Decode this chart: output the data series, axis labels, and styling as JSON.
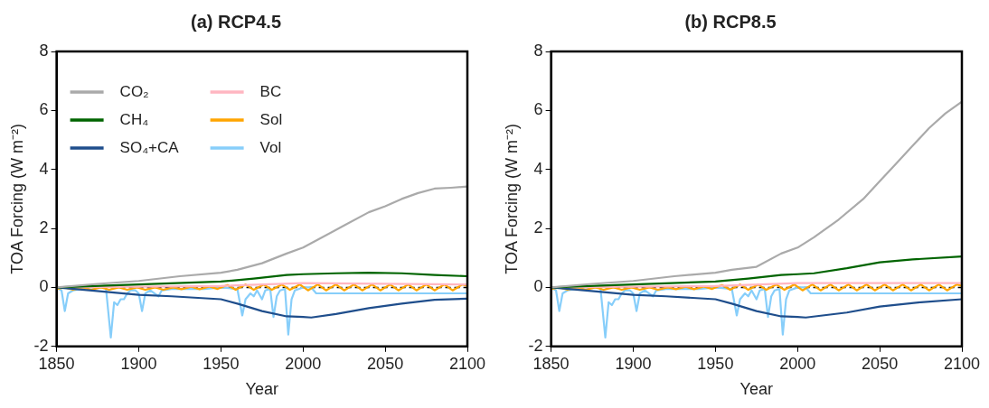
{
  "chart_data": [
    {
      "type": "line",
      "title": "(a) RCP4.5",
      "xlabel": "Year",
      "ylabel": "TOA Forcing (W m⁻²)",
      "xlim": [
        1850,
        2100
      ],
      "xticks": [
        1850,
        1900,
        1950,
        2000,
        2050,
        2100
      ],
      "ylim": [
        -2,
        8
      ],
      "yticks": [
        -2,
        0,
        2,
        4,
        6,
        8
      ],
      "grid": false,
      "legend": "top left",
      "marker": "none",
      "line_style": "solid",
      "ref_lines": [
        {
          "axis": "y",
          "value": 0,
          "color": "#000000",
          "line_style": "dashed"
        }
      ],
      "series": [
        {
          "name": "CO₂",
          "color": "#aaaaaa",
          "x": [
            1850,
            1875,
            1900,
            1925,
            1950,
            1960,
            1975,
            1990,
            2000,
            2010,
            2025,
            2040,
            2050,
            2060,
            2070,
            2080,
            2090,
            2100
          ],
          "values": [
            0,
            0.12,
            0.22,
            0.38,
            0.5,
            0.6,
            0.82,
            1.15,
            1.35,
            1.65,
            2.1,
            2.55,
            2.75,
            3.0,
            3.2,
            3.35,
            3.38,
            3.42
          ]
        },
        {
          "name": "CH₄",
          "color": "#006400",
          "x": [
            1850,
            1900,
            1950,
            1970,
            1990,
            2000,
            2020,
            2040,
            2060,
            2080,
            2100
          ],
          "values": [
            0,
            0.1,
            0.2,
            0.3,
            0.42,
            0.45,
            0.48,
            0.5,
            0.48,
            0.42,
            0.38
          ]
        },
        {
          "name": "SO₄+CA",
          "color": "#1f4e8c",
          "x": [
            1850,
            1870,
            1900,
            1920,
            1950,
            1960,
            1975,
            1990,
            2000,
            2005,
            2020,
            2040,
            2060,
            2080,
            2100
          ],
          "values": [
            0,
            -0.1,
            -0.25,
            -0.3,
            -0.4,
            -0.55,
            -0.8,
            -0.98,
            -1.0,
            -1.02,
            -0.9,
            -0.7,
            -0.55,
            -0.42,
            -0.38
          ]
        },
        {
          "name": "BC",
          "color": "#ffb6c1",
          "x": [
            1850,
            1950,
            2000,
            2100
          ],
          "values": [
            0,
            0.05,
            0.15,
            0.1
          ]
        },
        {
          "name": "Sol",
          "color": "#ffa500",
          "x": [
            1850,
            1855,
            1860,
            1866,
            1871,
            1877,
            1882,
            1888,
            1893,
            1899,
            1904,
            1910,
            1915,
            1921,
            1926,
            1932,
            1937,
            1943,
            1948,
            1954,
            1959,
            1965,
            1970,
            1976,
            1981,
            1987,
            1992,
            1998,
            2003,
            2009,
            2014,
            2020,
            2025,
            2031,
            2036,
            2042,
            2047,
            2053,
            2058,
            2064,
            2069,
            2075,
            2080,
            2086,
            2091,
            2097,
            2100
          ],
          "values": [
            -0.05,
            0,
            -0.08,
            0,
            -0.08,
            0,
            -0.08,
            0,
            -0.08,
            0,
            -0.08,
            0,
            -0.08,
            0,
            -0.06,
            0.02,
            -0.06,
            0.03,
            -0.05,
            0.08,
            -0.08,
            0.1,
            -0.08,
            0.1,
            -0.08,
            0.1,
            -0.08,
            0.1,
            -0.1,
            0.1,
            -0.1,
            0.1,
            -0.1,
            0.1,
            -0.1,
            0.1,
            -0.1,
            0.1,
            -0.1,
            0.1,
            -0.1,
            0.1,
            -0.1,
            0.1,
            -0.1,
            0.1,
            0.05
          ]
        },
        {
          "name": "Vol",
          "color": "#87cefa",
          "x": [
            1850,
            1853,
            1855,
            1857,
            1860,
            1865,
            1870,
            1880,
            1883,
            1885,
            1887,
            1889,
            1891,
            1893,
            1895,
            1898,
            1900,
            1902,
            1904,
            1907,
            1912,
            1914,
            1920,
            1930,
            1940,
            1950,
            1960,
            1963,
            1965,
            1968,
            1970,
            1972,
            1975,
            1977,
            1980,
            1982,
            1984,
            1986,
            1989,
            1991,
            1993,
            1995,
            2000,
            2005,
            2008,
            2100
          ],
          "values": [
            0,
            -0.1,
            -0.8,
            -0.2,
            -0.1,
            -0.05,
            0,
            0,
            -1.7,
            -0.5,
            -0.6,
            -0.4,
            -0.4,
            -0.2,
            -0.1,
            -0.1,
            -0.2,
            -0.8,
            -0.2,
            -0.1,
            -0.3,
            -0.1,
            -0.05,
            -0.05,
            -0.05,
            0,
            -0.05,
            -0.95,
            -0.4,
            -0.2,
            -0.3,
            -0.1,
            -0.4,
            -0.1,
            -0.05,
            -1.0,
            -0.3,
            -0.1,
            -0.05,
            -1.6,
            -0.4,
            -0.1,
            0,
            0,
            -0.2,
            -0.2
          ]
        }
      ]
    },
    {
      "type": "line",
      "title": "(b) RCP8.5",
      "xlabel": "Year",
      "ylabel": "TOA Forcing (W m⁻²)",
      "xlim": [
        1850,
        2100
      ],
      "xticks": [
        1850,
        1900,
        1950,
        2000,
        2050,
        2100
      ],
      "ylim": [
        -2,
        8
      ],
      "yticks": [
        -2,
        0,
        2,
        4,
        6,
        8
      ],
      "grid": false,
      "marker": "none",
      "line_style": "solid",
      "ref_lines": [
        {
          "axis": "y",
          "value": 0,
          "color": "#000000",
          "line_style": "dashed"
        }
      ],
      "series": [
        {
          "color": "#aaaaaa",
          "x": [
            1850,
            1875,
            1900,
            1925,
            1950,
            1960,
            1975,
            1990,
            2000,
            2010,
            2025,
            2040,
            2050,
            2060,
            2070,
            2080,
            2090,
            2100
          ],
          "values": [
            0,
            0.12,
            0.22,
            0.38,
            0.5,
            0.6,
            0.7,
            1.15,
            1.35,
            1.7,
            2.3,
            3.0,
            3.6,
            4.2,
            4.8,
            5.4,
            5.9,
            6.3
          ]
        },
        {
          "color": "#006400",
          "x": [
            1850,
            1900,
            1950,
            1970,
            1990,
            2000,
            2010,
            2030,
            2050,
            2070,
            2100
          ],
          "values": [
            0,
            0.1,
            0.2,
            0.3,
            0.42,
            0.45,
            0.48,
            0.65,
            0.85,
            0.95,
            1.05
          ]
        },
        {
          "color": "#1f4e8c",
          "x": [
            1850,
            1870,
            1900,
            1920,
            1950,
            1960,
            1975,
            1990,
            2000,
            2005,
            2030,
            2050,
            2075,
            2100
          ],
          "values": [
            0,
            -0.1,
            -0.25,
            -0.3,
            -0.4,
            -0.55,
            -0.8,
            -0.98,
            -1.0,
            -1.02,
            -0.85,
            -0.65,
            -0.5,
            -0.4
          ]
        },
        {
          "color": "#ffb6c1",
          "x": [
            1850,
            1950,
            2000,
            2100
          ],
          "values": [
            0,
            0.05,
            0.15,
            0.15
          ]
        },
        {
          "color": "#ffa500",
          "x": [
            1850,
            1855,
            1860,
            1866,
            1871,
            1877,
            1882,
            1888,
            1893,
            1899,
            1904,
            1910,
            1915,
            1921,
            1926,
            1932,
            1937,
            1943,
            1948,
            1954,
            1959,
            1965,
            1970,
            1976,
            1981,
            1987,
            1992,
            1998,
            2003,
            2009,
            2014,
            2020,
            2025,
            2031,
            2036,
            2042,
            2047,
            2053,
            2058,
            2064,
            2069,
            2075,
            2080,
            2086,
            2091,
            2097,
            2100
          ],
          "values": [
            -0.05,
            0,
            -0.08,
            0,
            -0.08,
            0,
            -0.08,
            0,
            -0.08,
            0,
            -0.08,
            0,
            -0.08,
            0,
            -0.06,
            0.02,
            -0.06,
            0.03,
            -0.05,
            0.08,
            -0.08,
            0.1,
            -0.08,
            0.1,
            -0.08,
            0.1,
            -0.08,
            0.1,
            -0.1,
            0.1,
            -0.1,
            0.1,
            -0.1,
            0.1,
            -0.1,
            0.1,
            -0.1,
            0.1,
            -0.1,
            0.1,
            -0.1,
            0.1,
            -0.1,
            0.1,
            -0.1,
            0.1,
            0.05
          ]
        },
        {
          "color": "#87cefa",
          "x": [
            1850,
            1853,
            1855,
            1857,
            1860,
            1865,
            1870,
            1880,
            1883,
            1885,
            1887,
            1889,
            1891,
            1893,
            1895,
            1898,
            1900,
            1902,
            1904,
            1907,
            1912,
            1914,
            1920,
            1930,
            1940,
            1950,
            1960,
            1963,
            1965,
            1968,
            1970,
            1972,
            1975,
            1977,
            1980,
            1982,
            1984,
            1986,
            1989,
            1991,
            1993,
            1995,
            2000,
            2005,
            2008,
            2100
          ],
          "values": [
            0,
            -0.1,
            -0.8,
            -0.2,
            -0.1,
            -0.05,
            0,
            0,
            -1.7,
            -0.5,
            -0.6,
            -0.4,
            -0.4,
            -0.2,
            -0.1,
            -0.1,
            -0.2,
            -0.8,
            -0.2,
            -0.1,
            -0.3,
            -0.1,
            -0.05,
            -0.05,
            -0.05,
            0,
            -0.05,
            -0.95,
            -0.4,
            -0.2,
            -0.3,
            -0.1,
            -0.4,
            -0.1,
            -0.05,
            -1.0,
            -0.3,
            -0.1,
            -0.05,
            -1.6,
            -0.4,
            -0.1,
            0,
            0,
            -0.2,
            -0.2
          ]
        }
      ]
    }
  ]
}
